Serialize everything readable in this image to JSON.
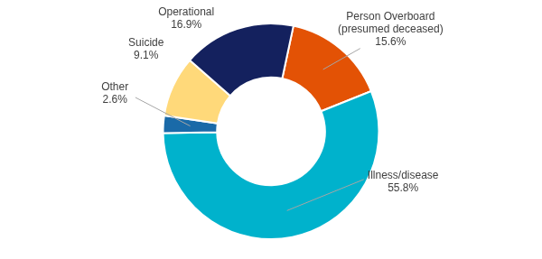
{
  "chart_data": {
    "type": "doughnut",
    "categories": [
      "Person Overboard (presumed deceased)",
      "Illness/disease",
      "Other",
      "Suicide",
      "Operational"
    ],
    "values": [
      15.6,
      55.8,
      2.6,
      9.1,
      16.9
    ],
    "value_labels": [
      "15.6%",
      "55.8%",
      "2.6%",
      "9.1%",
      "16.9%"
    ],
    "colors": [
      "#e35205",
      "#00b2cc",
      "#1a6aa8",
      "#ffd97a",
      "#14215e"
    ],
    "data_labels": true
  }
}
